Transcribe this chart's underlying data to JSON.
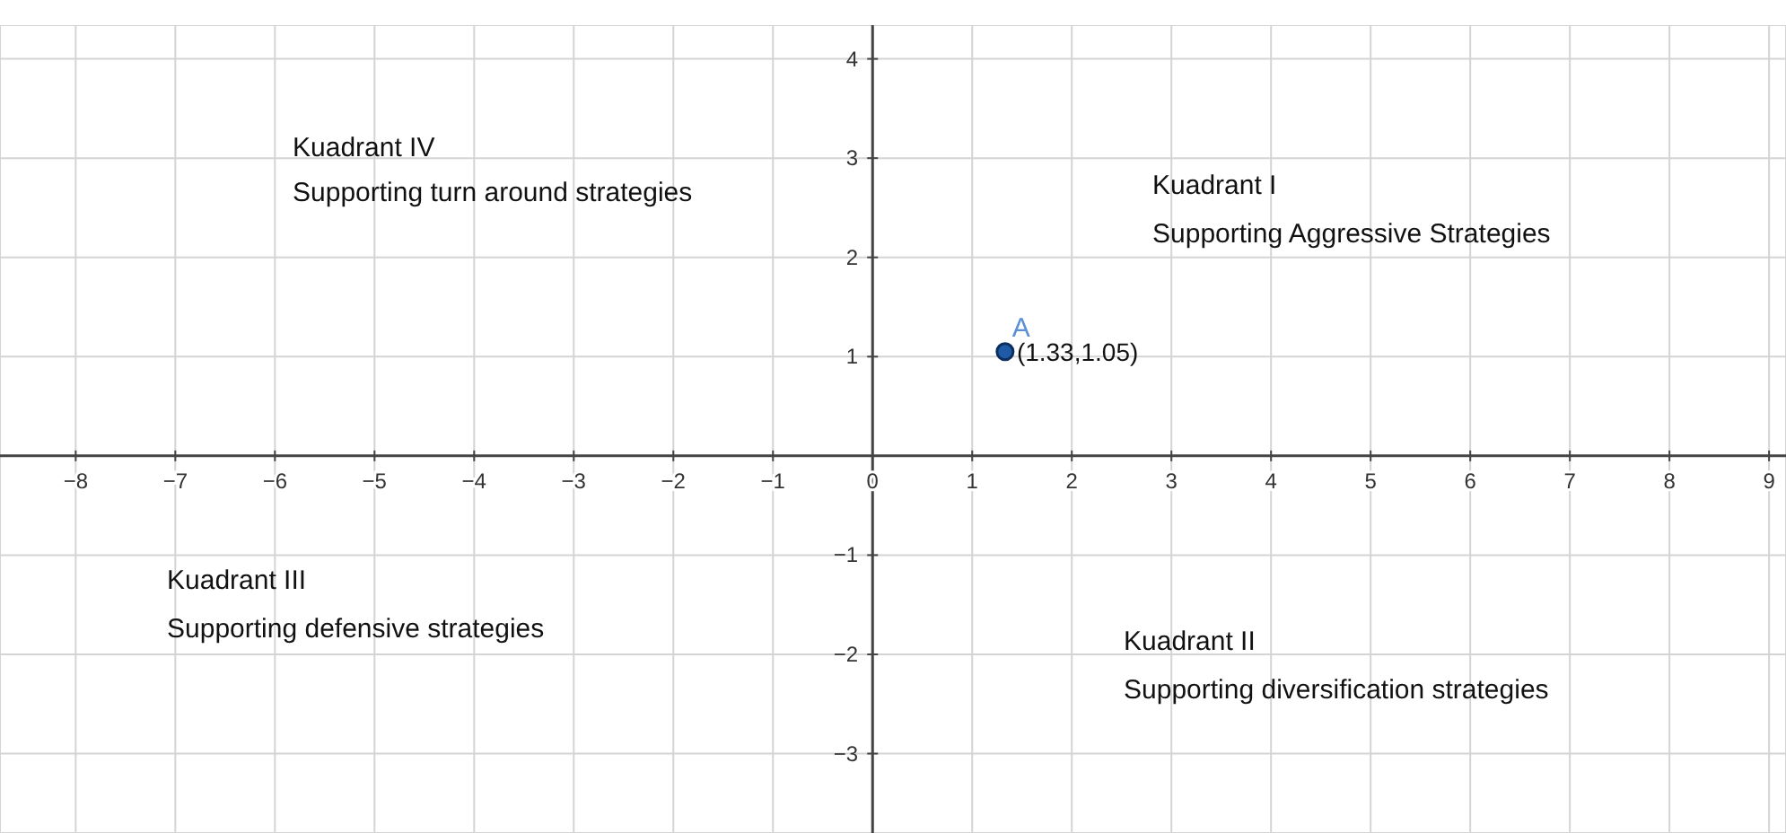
{
  "chart_data": {
    "type": "scatter",
    "x": [
      1.33
    ],
    "series": [
      {
        "name": "A",
        "color": "#1f5aa6",
        "values": [
          1.05
        ],
        "value_labels": [
          "(1.33,1.05)"
        ]
      }
    ],
    "xlim": [
      -8.76,
      9.17
    ],
    "ylim": [
      -3.8,
      4.34
    ],
    "xticks": [
      {
        "value": -8,
        "label": "−8"
      },
      {
        "value": -7,
        "label": "−7"
      },
      {
        "value": -6,
        "label": "−6"
      },
      {
        "value": -5,
        "label": "−5"
      },
      {
        "value": -4,
        "label": "−4"
      },
      {
        "value": -3,
        "label": "−3"
      },
      {
        "value": -2,
        "label": "−2"
      },
      {
        "value": -1,
        "label": "−1"
      },
      0,
      1,
      2,
      3,
      4,
      5,
      6,
      7,
      8,
      9
    ],
    "yticks": [
      {
        "value": -3,
        "label": "−3"
      },
      {
        "value": -2,
        "label": "−2"
      },
      {
        "value": -1,
        "label": "−1"
      },
      1,
      2,
      3,
      4
    ],
    "grid": true,
    "marker": "circle",
    "annotations": [
      "Kuadrant IV",
      "Supporting turn around strategies",
      "Kuadrant I",
      "Supporting Aggressive Strategies",
      "Kuadrant III",
      "Supporting defensive strategies",
      "Kuadrant II",
      "Supporting diversification strategies"
    ]
  }
}
